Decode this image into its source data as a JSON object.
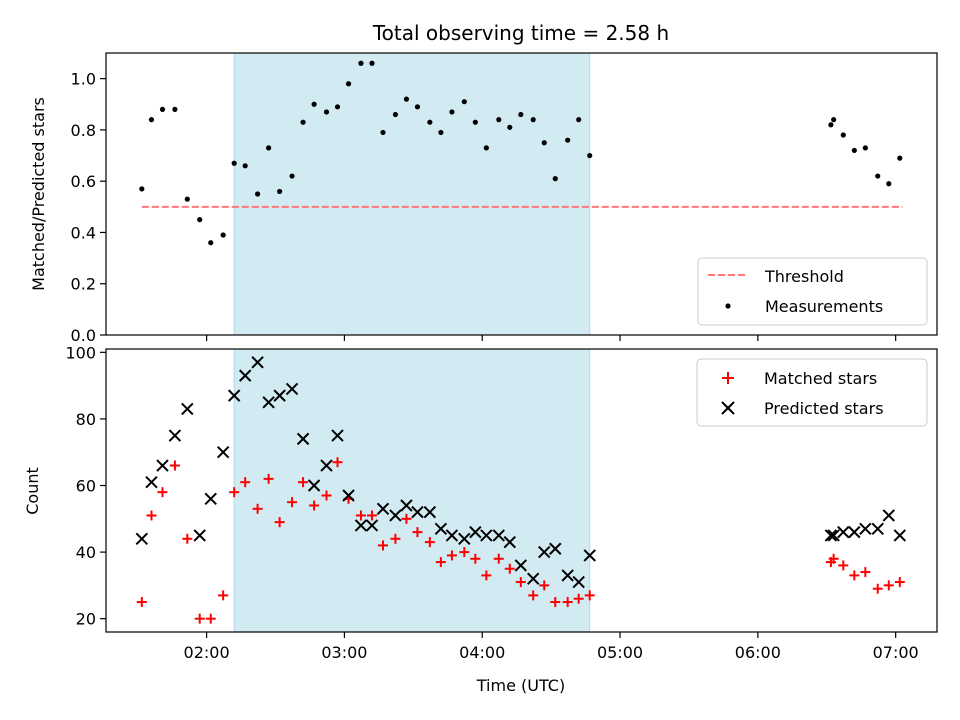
{
  "title": "Total observing time = 2.58 h",
  "colors": {
    "shade": "#add8e6",
    "threshold": "#ff7777",
    "measurement": "#000000",
    "matched": "#ff0000",
    "predicted": "#000000"
  },
  "chart_data": [
    {
      "type": "scatter",
      "panel": "top",
      "xlabel": "",
      "ylabel": "Matched/Predicted stars",
      "x_unit": "hours UTC",
      "xlim": [
        1.27,
        7.3
      ],
      "ylim": [
        0.0,
        1.1
      ],
      "yticks": [
        0.0,
        0.2,
        0.4,
        0.6,
        0.8,
        1.0
      ],
      "ytick_labels": [
        "0.0",
        "0.2",
        "0.4",
        "0.6",
        "0.8",
        "1.0"
      ],
      "xticks": [
        2,
        3,
        4,
        5,
        6,
        7
      ],
      "shaded_region": [
        2.2,
        4.78
      ],
      "legend_position": "lower right",
      "legend": [
        {
          "label": "Threshold",
          "style": "dashed-line"
        },
        {
          "label": "Measurements",
          "style": "dot"
        }
      ],
      "threshold": {
        "name": "Threshold",
        "y": 0.5,
        "x": [
          1.53,
          7.05
        ]
      },
      "series": [
        {
          "name": "Measurements",
          "marker": "dot",
          "x": [
            1.53,
            1.6,
            1.68,
            1.77,
            1.86,
            1.95,
            2.03,
            2.12,
            2.2,
            2.28,
            2.37,
            2.45,
            2.53,
            2.62,
            2.7,
            2.78,
            2.87,
            2.95,
            3.03,
            3.12,
            3.2,
            3.28,
            3.37,
            3.45,
            3.53,
            3.62,
            3.7,
            3.78,
            3.87,
            3.95,
            4.03,
            4.12,
            4.2,
            4.28,
            4.37,
            4.45,
            4.53,
            4.62,
            4.7,
            4.78,
            6.53,
            6.55,
            6.62,
            6.7,
            6.78,
            6.87,
            6.95,
            7.03
          ],
          "y": [
            0.57,
            0.84,
            0.88,
            0.88,
            0.53,
            0.45,
            0.36,
            0.39,
            0.67,
            0.66,
            0.55,
            0.73,
            0.56,
            0.62,
            0.83,
            0.9,
            0.87,
            0.89,
            0.98,
            1.06,
            1.06,
            0.79,
            0.86,
            0.92,
            0.89,
            0.83,
            0.79,
            0.87,
            0.91,
            0.83,
            0.73,
            0.84,
            0.81,
            0.86,
            0.84,
            0.75,
            0.61,
            0.76,
            0.84,
            0.7,
            0.82,
            0.84,
            0.78,
            0.72,
            0.73,
            0.62,
            0.59,
            0.69
          ]
        }
      ]
    },
    {
      "type": "scatter",
      "panel": "bottom",
      "xlabel": "Time (UTC)",
      "ylabel": "Count",
      "x_unit": "hours UTC",
      "xlim": [
        1.27,
        7.3
      ],
      "ylim": [
        16,
        101
      ],
      "yticks": [
        20,
        40,
        60,
        80,
        100
      ],
      "ytick_labels": [
        "20",
        "40",
        "60",
        "80",
        "100"
      ],
      "xticks": [
        2,
        3,
        4,
        5,
        6,
        7
      ],
      "xtick_labels": [
        "02:00",
        "03:00",
        "04:00",
        "05:00",
        "06:00",
        "07:00"
      ],
      "shaded_region": [
        2.2,
        4.78
      ],
      "legend_position": "upper right",
      "legend": [
        {
          "label": "Matched stars",
          "style": "plus"
        },
        {
          "label": "Predicted stars",
          "style": "x"
        }
      ],
      "series": [
        {
          "name": "Matched stars",
          "marker": "plus",
          "x": [
            1.53,
            1.6,
            1.68,
            1.77,
            1.86,
            1.95,
            2.03,
            2.12,
            2.2,
            2.28,
            2.37,
            2.45,
            2.53,
            2.62,
            2.7,
            2.78,
            2.87,
            2.95,
            3.03,
            3.12,
            3.2,
            3.28,
            3.37,
            3.45,
            3.53,
            3.62,
            3.7,
            3.78,
            3.87,
            3.95,
            4.03,
            4.12,
            4.2,
            4.28,
            4.37,
            4.45,
            4.53,
            4.62,
            4.7,
            4.78,
            6.53,
            6.55,
            6.62,
            6.7,
            6.78,
            6.87,
            6.95,
            7.03
          ],
          "y": [
            25,
            51,
            58,
            66,
            44,
            20,
            20,
            27,
            58,
            61,
            53,
            62,
            49,
            55,
            61,
            54,
            57,
            67,
            56,
            51,
            51,
            42,
            44,
            50,
            46,
            43,
            37,
            39,
            40,
            38,
            33,
            38,
            35,
            31,
            27,
            30,
            25,
            25,
            26,
            27,
            37,
            38,
            36,
            33,
            34,
            29,
            30,
            31
          ]
        },
        {
          "name": "Predicted stars",
          "marker": "x",
          "x": [
            1.53,
            1.6,
            1.68,
            1.77,
            1.86,
            1.95,
            2.03,
            2.12,
            2.2,
            2.28,
            2.37,
            2.45,
            2.53,
            2.62,
            2.7,
            2.78,
            2.87,
            2.95,
            3.03,
            3.12,
            3.2,
            3.28,
            3.37,
            3.45,
            3.53,
            3.62,
            3.7,
            3.78,
            3.87,
            3.95,
            4.03,
            4.12,
            4.2,
            4.28,
            4.37,
            4.45,
            4.53,
            4.62,
            4.7,
            4.78,
            6.53,
            6.55,
            6.62,
            6.7,
            6.78,
            6.87,
            6.95,
            7.03
          ],
          "y": [
            44,
            61,
            66,
            75,
            83,
            45,
            56,
            70,
            87,
            93,
            97,
            85,
            87,
            89,
            74,
            60,
            66,
            75,
            57,
            48,
            48,
            53,
            51,
            54,
            52,
            52,
            47,
            45,
            44,
            46,
            45,
            45,
            43,
            36,
            32,
            40,
            41,
            33,
            31,
            39,
            45,
            45,
            46,
            46,
            47,
            47,
            51,
            45
          ]
        }
      ]
    }
  ]
}
